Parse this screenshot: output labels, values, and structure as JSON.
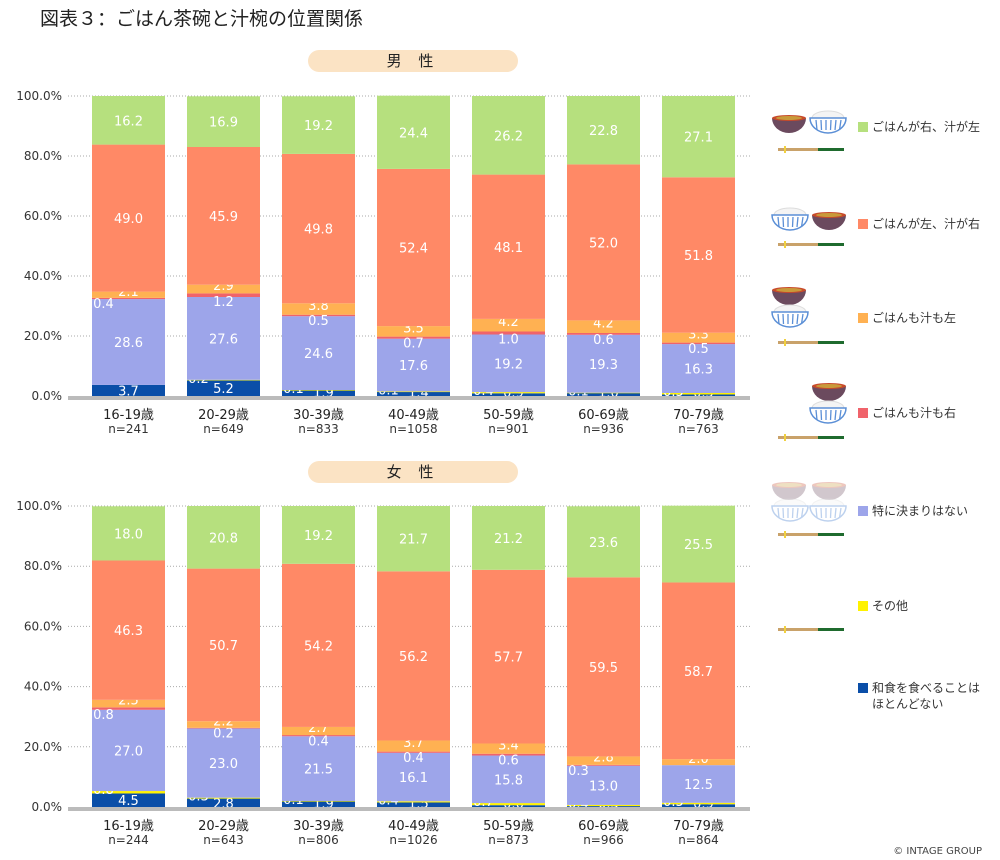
{
  "title": "図表３：ごはん茶碗と汁椀の位置関係",
  "copyright": "© INTAGE GROUP",
  "colors": {
    "green": "#b6e07e",
    "salmon": "#ff8966",
    "orange": "#ffb152",
    "red": "#f0636b",
    "lavender": "#9da5ea",
    "yellow": "#fff200",
    "blue": "#0a4ea8"
  },
  "legend": [
    {
      "label": "ごはんが右、汁が左",
      "color": "#b6e07e",
      "icon": "soup-left-rice-right-icon"
    },
    {
      "label": "ごはんが左、汁が右",
      "color": "#ff8966",
      "icon": "rice-left-soup-right-icon"
    },
    {
      "label": "ごはんも汁も左",
      "color": "#ffb152",
      "icon": "both-left-icon"
    },
    {
      "label": "ごはんも汁も右",
      "color": "#f0636b",
      "icon": "both-right-icon"
    },
    {
      "label": "特に決まりはない",
      "color": "#9da5ea",
      "icon": "undecided-icon"
    },
    {
      "label": "その他",
      "color": "#fff200",
      "icon": "chopsticks-icon"
    },
    {
      "label": "和食を食べることは\nほとんどない",
      "color": "#0a4ea8",
      "icon": ""
    }
  ],
  "chart_data": [
    {
      "type": "bar",
      "stacked": true,
      "title": "男 性",
      "ylim": [
        0,
        100
      ],
      "yticks": [
        "0.0%",
        "20.0%",
        "40.0%",
        "60.0%",
        "80.0%",
        "100.0%"
      ],
      "categories": [
        "16-19歳",
        "20-29歳",
        "30-39歳",
        "40-49歳",
        "50-59歳",
        "60-69歳",
        "70-79歳"
      ],
      "n": [
        "n=241",
        "n=649",
        "n=833",
        "n=1058",
        "n=901",
        "n=936",
        "n=763"
      ],
      "series": [
        {
          "name": "和食を食べることはほとんどない",
          "values": [
            3.7,
            5.2,
            1.9,
            1.4,
            0.9,
            1.0,
            0.5
          ]
        },
        {
          "name": "その他",
          "values": [
            null,
            0.2,
            0.1,
            0.1,
            0.4,
            0.1,
            0.5
          ]
        },
        {
          "name": "特に決まりはない",
          "values": [
            28.6,
            27.6,
            24.6,
            17.6,
            19.2,
            19.3,
            16.3
          ]
        },
        {
          "name": "ごはんも汁も右",
          "values": [
            0.4,
            1.2,
            0.5,
            0.7,
            1.0,
            0.6,
            0.5
          ]
        },
        {
          "name": "ごはんも汁も左",
          "values": [
            2.1,
            2.9,
            3.8,
            3.5,
            4.2,
            4.2,
            3.3
          ]
        },
        {
          "name": "ごはんが左、汁が右",
          "values": [
            49.0,
            45.9,
            49.8,
            52.4,
            48.1,
            52.0,
            51.8
          ]
        },
        {
          "name": "ごはんが右、汁が左",
          "values": [
            16.2,
            16.9,
            19.2,
            24.4,
            26.2,
            22.8,
            27.1
          ]
        }
      ]
    },
    {
      "type": "bar",
      "stacked": true,
      "title": "女 性",
      "ylim": [
        0,
        100
      ],
      "yticks": [
        "0.0%",
        "20.0%",
        "40.0%",
        "60.0%",
        "80.0%",
        "100.0%"
      ],
      "categories": [
        "16-19歳",
        "20-29歳",
        "30-39歳",
        "40-49歳",
        "50-59歳",
        "60-69歳",
        "70-79歳"
      ],
      "n": [
        "n=244",
        "n=643",
        "n=806",
        "n=1026",
        "n=873",
        "n=966",
        "n=864"
      ],
      "series": [
        {
          "name": "和食を食べることはほとんどない",
          "values": [
            4.5,
            2.8,
            1.9,
            1.5,
            0.6,
            0.3,
            0.9
          ]
        },
        {
          "name": "その他",
          "values": [
            0.8,
            0.3,
            0.1,
            0.4,
            0.7,
            0.4,
            0.5
          ]
        },
        {
          "name": "特に決まりはない",
          "values": [
            27.0,
            23.0,
            21.5,
            16.1,
            15.8,
            13.0,
            12.5
          ]
        },
        {
          "name": "ごはんも汁も右",
          "values": [
            0.8,
            0.2,
            0.4,
            0.4,
            0.6,
            0.3,
            null
          ]
        },
        {
          "name": "ごはんも汁も左",
          "values": [
            2.5,
            2.2,
            2.7,
            3.7,
            3.4,
            2.8,
            2.0
          ]
        },
        {
          "name": "ごはんが左、汁が右",
          "values": [
            46.3,
            50.7,
            54.2,
            56.2,
            57.7,
            59.5,
            58.7
          ]
        },
        {
          "name": "ごはんが右、汁が左",
          "values": [
            18.0,
            20.8,
            19.2,
            21.7,
            21.2,
            23.6,
            25.5
          ]
        }
      ]
    }
  ]
}
